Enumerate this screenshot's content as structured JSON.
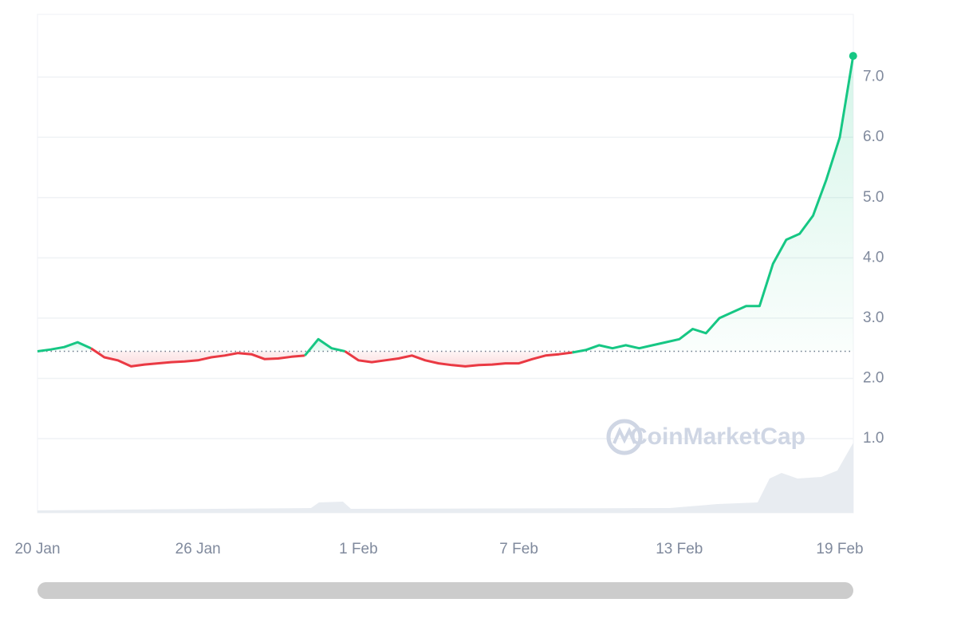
{
  "chart_data": {
    "type": "line",
    "watermark": "CoinMarketCap",
    "categories": [
      "20 Jan",
      null,
      null,
      null,
      null,
      null,
      null,
      null,
      null,
      null,
      null,
      null,
      "26 Jan",
      null,
      null,
      null,
      null,
      null,
      null,
      null,
      null,
      null,
      null,
      null,
      "1 Feb",
      null,
      null,
      null,
      null,
      null,
      null,
      null,
      null,
      null,
      null,
      null,
      "7 Feb",
      null,
      null,
      null,
      null,
      null,
      null,
      null,
      null,
      null,
      null,
      null,
      "13 Feb",
      null,
      null,
      null,
      null,
      null,
      null,
      null,
      null,
      null,
      null,
      null,
      "19 Feb",
      null
    ],
    "series": [
      {
        "values": [
          2.45,
          2.48,
          2.52,
          2.6,
          2.5,
          2.35,
          2.3,
          2.2,
          2.23,
          2.25,
          2.27,
          2.28,
          2.3,
          2.35,
          2.38,
          2.42,
          2.4,
          2.32,
          2.33,
          2.36,
          2.38,
          2.65,
          2.5,
          2.45,
          2.3,
          2.27,
          2.3,
          2.33,
          2.38,
          2.3,
          2.25,
          2.22,
          2.2,
          2.22,
          2.23,
          2.25,
          2.25,
          2.32,
          2.38,
          2.4,
          2.43,
          2.47,
          2.55,
          2.5,
          2.55,
          2.5,
          2.55,
          2.6,
          2.65,
          2.82,
          2.75,
          3.0,
          3.1,
          3.2,
          3.2,
          3.9,
          4.3,
          4.4,
          4.7,
          5.3,
          6.0,
          7.35
        ]
      }
    ],
    "baseline": 2.45,
    "up_color": "#16c784",
    "down_color": "#ea3943",
    "ylim": [
      -0.23,
      8.04
    ],
    "yticks": [
      {
        "value": 1,
        "label": "1.0"
      },
      {
        "value": 2,
        "label": "2.0"
      },
      {
        "value": 3,
        "label": "3.0"
      },
      {
        "value": 4,
        "label": "4.0"
      },
      {
        "value": 5,
        "label": "5.0"
      },
      {
        "value": 6,
        "label": "6.0"
      },
      {
        "value": 7,
        "label": "7.0"
      }
    ],
    "grid": true
  }
}
